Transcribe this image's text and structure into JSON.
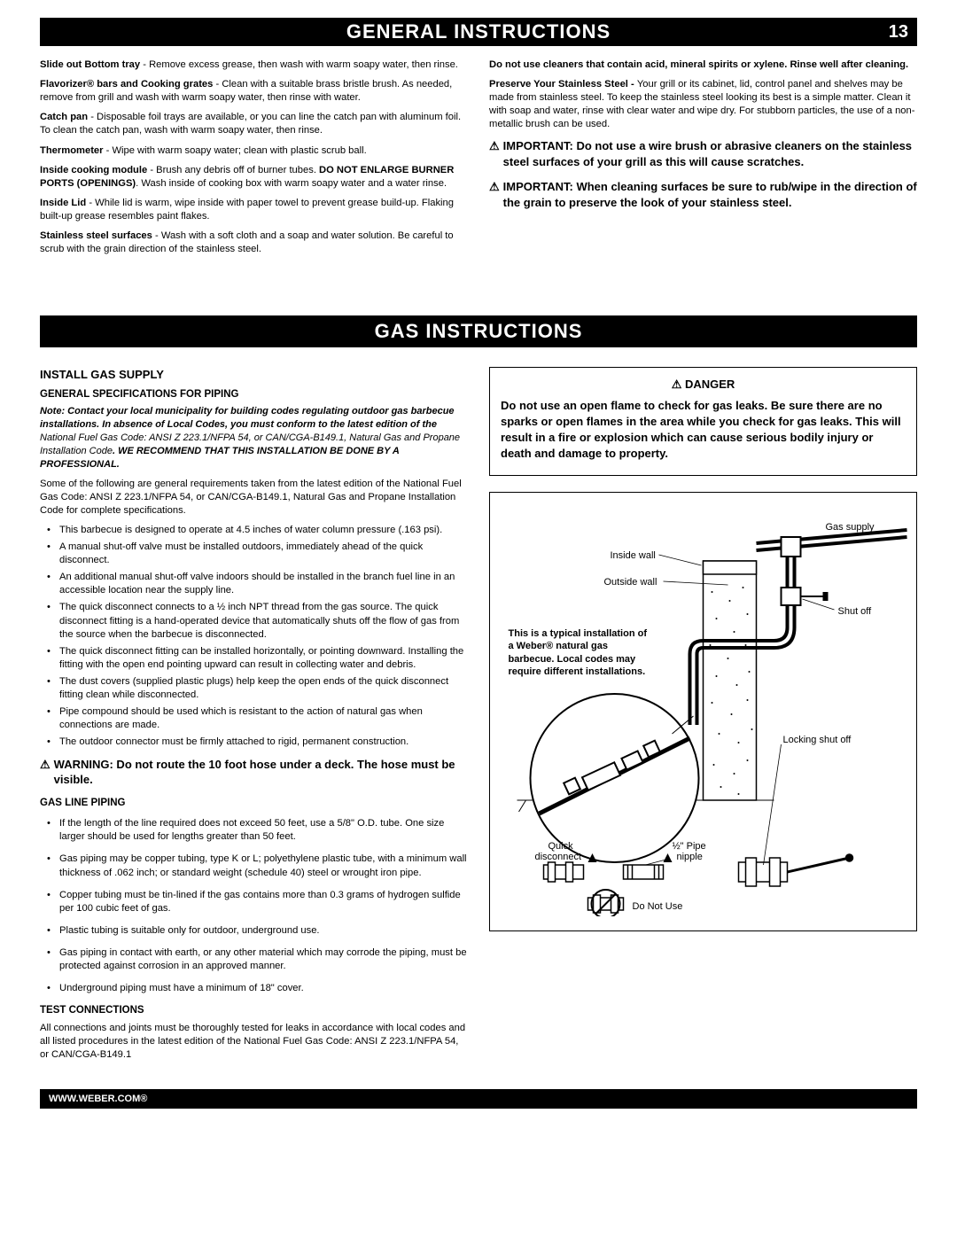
{
  "page": {
    "header1_title": "GENERAL INSTRUCTIONS",
    "page_number": "13",
    "section2_title": "GAS INSTRUCTIONS",
    "footer": "WWW.WEBER.COM®"
  },
  "general_left": {
    "p1_b": "Slide out Bottom tray",
    "p1": " - Remove excess grease, then wash with warm soapy water, then rinse.",
    "p2_b": "Flavorizer® bars and Cooking grates",
    "p2": " - Clean with a suitable brass bristle brush. As needed, remove from grill and wash with warm soapy water, then rinse with water.",
    "p3_b": "Catch pan",
    "p3": " - Disposable foil trays are available, or you can line the catch pan with aluminum foil. To clean the catch pan, wash with warm soapy water, then rinse.",
    "p4_b": "Thermometer",
    "p4": " - Wipe with warm soapy water; clean with plastic scrub ball.",
    "p5_b": "Inside cooking module",
    "p5_mid": " - Brush any debris off of burner tubes. ",
    "p5_b2": "DO NOT ENLARGE BURNER PORTS (OPENINGS)",
    "p5_end": ". Wash inside of cooking box with warm soapy water and a water rinse.",
    "p6_b": "Inside Lid",
    "p6": " - While lid is warm, wipe inside with paper towel to prevent grease build-up. Flaking built-up grease resembles paint flakes.",
    "p7_b": "Stainless steel surfaces",
    "p7": " - Wash with a soft cloth and a soap and water solution. Be careful to scrub with the grain direction of the stainless steel."
  },
  "general_right": {
    "p1": "Do not use cleaners that contain acid, mineral spirits or xylene. Rinse well after cleaning.",
    "p2_b": "Preserve Your Stainless Steel - ",
    "p2": "Your grill or its cabinet, lid, control panel and shelves may be made from stainless steel. To keep the stainless steel looking its best is a simple matter. Clean it with soap and water, rinse with clear water and wipe dry. For stubborn particles, the use of a non-metallic brush can be used.",
    "imp1": "IMPORTANT: Do not use a wire brush or abrasive cleaners on the stainless steel surfaces of your grill as this will cause scratches.",
    "imp2": "IMPORTANT: When cleaning surfaces be sure to rub/wipe in the direction of the grain to preserve the look of your stainless steel."
  },
  "gas_left": {
    "h_install": "INSTALL GAS SUPPLY",
    "h_spec": "GENERAL SPECIFICATIONS FOR PIPING",
    "note_pre": "Note: Contact your local municipality for building codes regulating outdoor gas barbecue installations. In absence of Local Codes, you must conform to the latest edition of the ",
    "note_mid": "National Fuel Gas Code: ANSI Z 223.1/NFPA 54, or CAN/CGA-B149.1, Natural Gas and Propane Installation Code",
    "note_post": ". WE RECOMMEND THAT THIS INSTALLATION BE DONE BY A PROFESSIONAL.",
    "intro": "Some of the following are general requirements taken from the latest edition of the National Fuel Gas Code: ANSI Z 223.1/NFPA 54, or CAN/CGA-B149.1, Natural Gas and Propane Installation Code for complete specifications.",
    "bullets1": [
      "This barbecue is designed to operate at 4.5 inches of water column pressure (.163 psi).",
      "A manual shut-off valve must be installed outdoors, immediately ahead of the quick disconnect.",
      "An additional manual shut-off valve indoors should be installed in the branch fuel line in an accessible location near the supply line.",
      "The quick disconnect connects to a ½ inch NPT thread from the gas source. The quick disconnect fitting is a hand-operated device that automatically shuts off the flow of gas from the source when the barbecue is disconnected.",
      "The quick disconnect fitting can be installed horizontally, or pointing downward. Installing the fitting with the open end pointing upward can result in collecting water and debris.",
      "The dust covers (supplied plastic plugs) help keep the open ends of the quick disconnect fitting clean while disconnected.",
      "Pipe compound should be used which is resistant to the action of natural gas when connections are made.",
      "The outdoor connector must be firmly attached to rigid, permanent construction."
    ],
    "warn": "WARNING: Do not route the 10 foot hose under a deck. The hose must be visible.",
    "h_gasline": "GAS LINE PIPING",
    "bullets2": [
      "If the length of the line required does not exceed 50 feet, use a 5/8\" O.D. tube. One size larger should be used for lengths greater than 50 feet.",
      "Gas piping may be copper tubing, type K or L; polyethylene plastic tube, with a minimum wall thickness of .062 inch; or standard weight (schedule 40) steel or wrought iron pipe.",
      "Copper tubing must be tin-lined if the gas contains more than 0.3 grams of hydrogen sulfide per 100 cubic feet of gas.",
      "Plastic tubing is suitable only for outdoor, underground use.",
      "Gas piping in contact with earth, or any other material which may corrode the piping, must be protected against corrosion in an approved manner.",
      "Underground piping must have a minimum of 18\" cover."
    ],
    "h_test": "TEST CONNECTIONS",
    "test_body": "All connections and joints must be thoroughly tested for leaks in accordance with local codes and all listed procedures in the latest edition of the National Fuel Gas Code: ANSI Z 223.1/NFPA 54, or CAN/CGA-B149.1"
  },
  "gas_right": {
    "danger_title": "⚠ DANGER",
    "danger_body": "Do not use an open flame to check for gas leaks. Be sure there are no sparks or open flames in the area while you check for gas leaks. This will result in a fire or explosion which can cause serious bodily injury or death and damage to property."
  },
  "diagram": {
    "inside_wall": "Inside wall",
    "outside_wall": "Outside wall",
    "gas_supply": "Gas supply",
    "shut_off": "Shut off",
    "typical": "This is a typical installation of a Weber® natural gas barbecue. Local codes may require different installations.",
    "locking": "Locking shut off",
    "quick": "Quick disconnect",
    "pipe_nipple": "½\" Pipe nipple",
    "do_not_use": "Do Not Use"
  }
}
